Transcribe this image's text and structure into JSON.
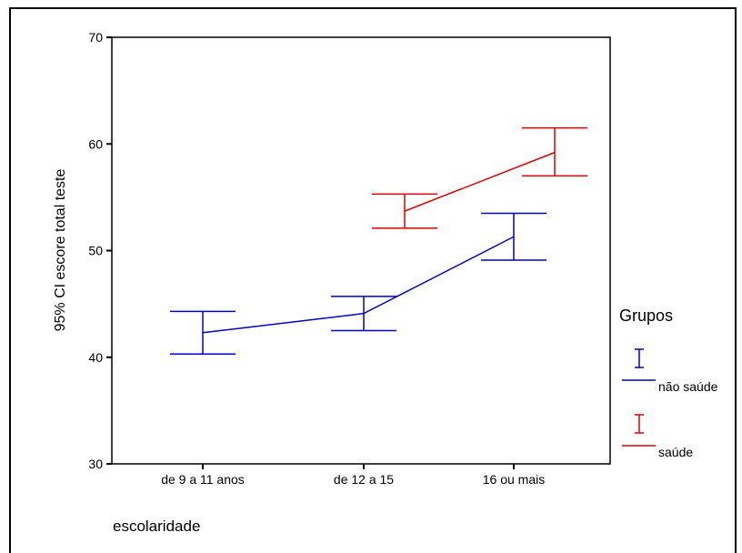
{
  "chart_data": {
    "type": "errorbar-line",
    "xlabel": "escolaridade",
    "ylabel": "95% CI escore total teste",
    "categories": [
      "de 9 a 11 anos",
      "de 12 a 15",
      "16 ou mais"
    ],
    "ylim": [
      30,
      70
    ],
    "yticks": [
      30,
      40,
      50,
      60,
      70
    ],
    "series": [
      {
        "name": "não saúde",
        "color": "#0000cc",
        "points": [
          {
            "category": "de 9 a 11 anos",
            "mean": 42.3,
            "lower": 40.3,
            "upper": 44.3
          },
          {
            "category": "de 12 a 15",
            "mean": 44.1,
            "lower": 42.5,
            "upper": 45.7
          },
          {
            "category": "16 ou mais",
            "mean": 51.3,
            "lower": 49.1,
            "upper": 53.5
          }
        ]
      },
      {
        "name": "saúde",
        "color": "#dd0000",
        "points": [
          {
            "category": "de 12 a 15",
            "mean": 53.7,
            "lower": 52.1,
            "upper": 55.3
          },
          {
            "category": "16 ou mais",
            "mean": 59.2,
            "lower": 57.0,
            "upper": 61.5
          }
        ]
      }
    ],
    "legend": {
      "title": "Grupos",
      "position": "right"
    },
    "grid": false
  }
}
